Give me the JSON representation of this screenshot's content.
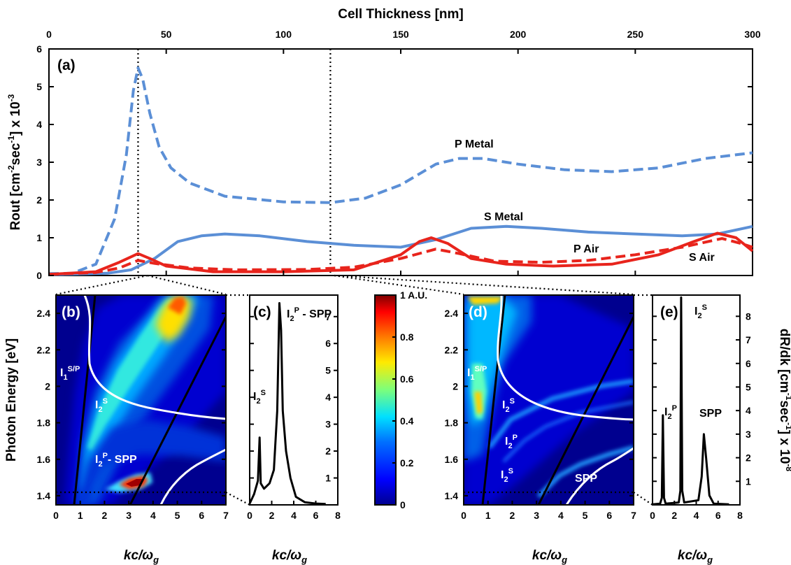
{
  "chart_data": [
    {
      "id": "a",
      "type": "line",
      "panel_label": "(a)",
      "xlabel": "Cell Thickness [nm]",
      "ylabel_main": "Rout [cm",
      "ylabel_sup1": "-2",
      "ylabel_mid": "sec",
      "ylabel_sup2": "-1",
      "ylabel_end": "] x 10",
      "ylabel_sup3": "-3",
      "xlim": [
        0,
        300
      ],
      "ylim": [
        0,
        6
      ],
      "xticks": [
        "0",
        "50",
        "100",
        "150",
        "200",
        "250",
        "300"
      ],
      "yticks": [
        "0",
        "1",
        "2",
        "3",
        "4",
        "5",
        "6"
      ],
      "vlines": [
        38,
        120
      ],
      "series": [
        {
          "name": "P Metal",
          "style": "dashed",
          "color": "#5b8fd6",
          "points": [
            [
              0,
              0.05
            ],
            [
              10,
              0.06
            ],
            [
              20,
              0.3
            ],
            [
              28,
              1.5
            ],
            [
              33,
              3.2
            ],
            [
              36,
              4.9
            ],
            [
              38,
              5.5
            ],
            [
              40,
              5.2
            ],
            [
              43,
              4.3
            ],
            [
              47,
              3.4
            ],
            [
              52,
              2.85
            ],
            [
              60,
              2.45
            ],
            [
              75,
              2.1
            ],
            [
              100,
              1.95
            ],
            [
              120,
              1.93
            ],
            [
              135,
              2.05
            ],
            [
              150,
              2.4
            ],
            [
              165,
              2.95
            ],
            [
              175,
              3.1
            ],
            [
              185,
              3.1
            ],
            [
              200,
              2.95
            ],
            [
              220,
              2.8
            ],
            [
              240,
              2.75
            ],
            [
              260,
              2.85
            ],
            [
              280,
              3.1
            ],
            [
              300,
              3.25
            ]
          ]
        },
        {
          "name": "S Metal",
          "style": "solid",
          "color": "#5b8fd6",
          "points": [
            [
              0,
              0.02
            ],
            [
              25,
              0.06
            ],
            [
              35,
              0.15
            ],
            [
              45,
              0.45
            ],
            [
              55,
              0.9
            ],
            [
              65,
              1.05
            ],
            [
              75,
              1.1
            ],
            [
              90,
              1.05
            ],
            [
              110,
              0.9
            ],
            [
              130,
              0.8
            ],
            [
              150,
              0.75
            ],
            [
              165,
              0.95
            ],
            [
              180,
              1.25
            ],
            [
              195,
              1.3
            ],
            [
              210,
              1.25
            ],
            [
              230,
              1.15
            ],
            [
              250,
              1.1
            ],
            [
              270,
              1.05
            ],
            [
              285,
              1.1
            ],
            [
              300,
              1.3
            ]
          ]
        },
        {
          "name": "P Air",
          "style": "dashed",
          "color": "#e8241c",
          "points": [
            [
              0,
              0.03
            ],
            [
              20,
              0.08
            ],
            [
              30,
              0.2
            ],
            [
              38,
              0.4
            ],
            [
              45,
              0.32
            ],
            [
              60,
              0.2
            ],
            [
              80,
              0.15
            ],
            [
              110,
              0.16
            ],
            [
              130,
              0.22
            ],
            [
              150,
              0.45
            ],
            [
              165,
              0.7
            ],
            [
              175,
              0.58
            ],
            [
              190,
              0.38
            ],
            [
              210,
              0.35
            ],
            [
              230,
              0.4
            ],
            [
              250,
              0.55
            ],
            [
              270,
              0.75
            ],
            [
              287,
              0.98
            ],
            [
              295,
              0.85
            ],
            [
              300,
              0.75
            ]
          ]
        },
        {
          "name": "S Air",
          "style": "solid",
          "color": "#e8241c",
          "points": [
            [
              0,
              0.03
            ],
            [
              20,
              0.1
            ],
            [
              30,
              0.35
            ],
            [
              38,
              0.58
            ],
            [
              43,
              0.45
            ],
            [
              50,
              0.25
            ],
            [
              70,
              0.1
            ],
            [
              100,
              0.1
            ],
            [
              130,
              0.15
            ],
            [
              150,
              0.55
            ],
            [
              158,
              0.9
            ],
            [
              163,
              1.0
            ],
            [
              170,
              0.85
            ],
            [
              180,
              0.45
            ],
            [
              195,
              0.3
            ],
            [
              215,
              0.25
            ],
            [
              240,
              0.3
            ],
            [
              260,
              0.55
            ],
            [
              275,
              0.9
            ],
            [
              285,
              1.12
            ],
            [
              293,
              1.0
            ],
            [
              300,
              0.65
            ]
          ]
        }
      ],
      "annotations": [
        "P Metal",
        "S Metal",
        "P Air",
        "S Air"
      ]
    },
    {
      "id": "b",
      "type": "heatmap",
      "panel_label": "(b)",
      "xlabel": "kc/ω",
      "xlabel_sub": "g",
      "ylabel": "Photon Energy [eV]",
      "xlim": [
        0,
        7
      ],
      "ylim": [
        1.35,
        2.5
      ],
      "xticks": [
        "0",
        "1",
        "2",
        "3",
        "4",
        "5",
        "6",
        "7"
      ],
      "yticks": [
        "1.4",
        "1.6",
        "1.8",
        "2",
        "2.2",
        "2.4"
      ],
      "hline": 1.42,
      "labels": [
        {
          "base": "I",
          "sub": "1",
          "sup": "S/P"
        },
        {
          "base": "I",
          "sub": "2",
          "sup": "S"
        },
        {
          "base": "I",
          "sub": "2",
          "sup": "P",
          "tail": "- SPP"
        }
      ]
    },
    {
      "id": "c",
      "type": "line",
      "panel_label": "(c)",
      "xlabel": "kc/ω",
      "xlabel_sub": "g",
      "xlim": [
        0,
        8
      ],
      "ylim": [
        0,
        7.8
      ],
      "xticks": [
        "0",
        "2",
        "4",
        "6",
        "8"
      ],
      "yticks": [
        "1",
        "2",
        "3",
        "4",
        "5",
        "6",
        "7"
      ],
      "labels": [
        {
          "base": "I",
          "sub": "2",
          "sup": "S"
        },
        {
          "base": "I",
          "sub": "2",
          "sup": "P",
          "tail": " - SPP"
        }
      ],
      "series": [
        {
          "points": [
            [
              0,
              0.05
            ],
            [
              0.4,
              0.4
            ],
            [
              0.75,
              0.9
            ],
            [
              0.9,
              2.5
            ],
            [
              1.0,
              0.8
            ],
            [
              1.3,
              0.6
            ],
            [
              1.8,
              0.8
            ],
            [
              2.2,
              1.3
            ],
            [
              2.5,
              3.5
            ],
            [
              2.7,
              7.5
            ],
            [
              2.85,
              6.5
            ],
            [
              3.0,
              3.5
            ],
            [
              3.3,
              2.0
            ],
            [
              3.7,
              1.0
            ],
            [
              4.2,
              0.3
            ],
            [
              5,
              0.1
            ],
            [
              6,
              0.05
            ],
            [
              6.9,
              0.03
            ]
          ]
        }
      ]
    },
    {
      "id": "colorbar",
      "type": "heatmap",
      "ticks": [
        "0",
        "0.2",
        "0.4",
        "0.6",
        "0.8",
        "1 A.U."
      ],
      "tick_values": [
        0,
        0.2,
        0.4,
        0.6,
        0.8,
        1.0
      ]
    },
    {
      "id": "d",
      "type": "heatmap",
      "panel_label": "(d)",
      "xlabel": "kc/ω",
      "xlabel_sub": "g",
      "xlim": [
        0,
        7
      ],
      "ylim": [
        1.35,
        2.5
      ],
      "xticks": [
        "0",
        "1",
        "2",
        "3",
        "4",
        "5",
        "6",
        "7"
      ],
      "yticks": [
        "1.4",
        "1.6",
        "1.8",
        "2",
        "2.2",
        "2.4"
      ],
      "hline": 1.42,
      "labels": [
        {
          "base": "I",
          "sub": "1",
          "sup": "S/P"
        },
        {
          "base": "I",
          "sub": "2",
          "sup": "S"
        },
        {
          "base": "I",
          "sub": "2",
          "sup": "P"
        },
        {
          "base": "I",
          "sub": "2",
          "sup": "S"
        },
        {
          "base": "SPP"
        }
      ]
    },
    {
      "id": "e",
      "type": "line",
      "panel_label": "(e)",
      "xlabel": "kc/ω",
      "xlabel_sub": "g",
      "ylabel_main": "dR/dk [cm",
      "ylabel_sup1": "-1",
      "ylabel_mid": "sec",
      "ylabel_sup2": "-1",
      "ylabel_end": "] x 10",
      "ylabel_sup3": "-8",
      "xlim": [
        0,
        8
      ],
      "ylim": [
        0,
        8.9
      ],
      "xticks": [
        "0",
        "2",
        "4",
        "6",
        "8"
      ],
      "yticks": [
        "1",
        "2",
        "3",
        "4",
        "5",
        "6",
        "7",
        "8"
      ],
      "labels": [
        {
          "base": "I",
          "sub": "2",
          "sup": "P"
        },
        {
          "base": "I",
          "sub": "2",
          "sup": "S"
        },
        {
          "base": "SPP"
        }
      ],
      "series": [
        {
          "points": [
            [
              0,
              0.02
            ],
            [
              0.7,
              0.05
            ],
            [
              0.85,
              0.3
            ],
            [
              0.95,
              3.8
            ],
            [
              1.05,
              0.3
            ],
            [
              1.2,
              0.05
            ],
            [
              2.4,
              0.1
            ],
            [
              2.55,
              0.6
            ],
            [
              2.62,
              8.8
            ],
            [
              2.72,
              0.6
            ],
            [
              2.9,
              0.1
            ],
            [
              4.2,
              0.2
            ],
            [
              4.5,
              1.2
            ],
            [
              4.7,
              3.0
            ],
            [
              4.9,
              2.0
            ],
            [
              5.2,
              0.4
            ],
            [
              5.6,
              0.05
            ],
            [
              7,
              0.02
            ]
          ]
        }
      ]
    }
  ]
}
